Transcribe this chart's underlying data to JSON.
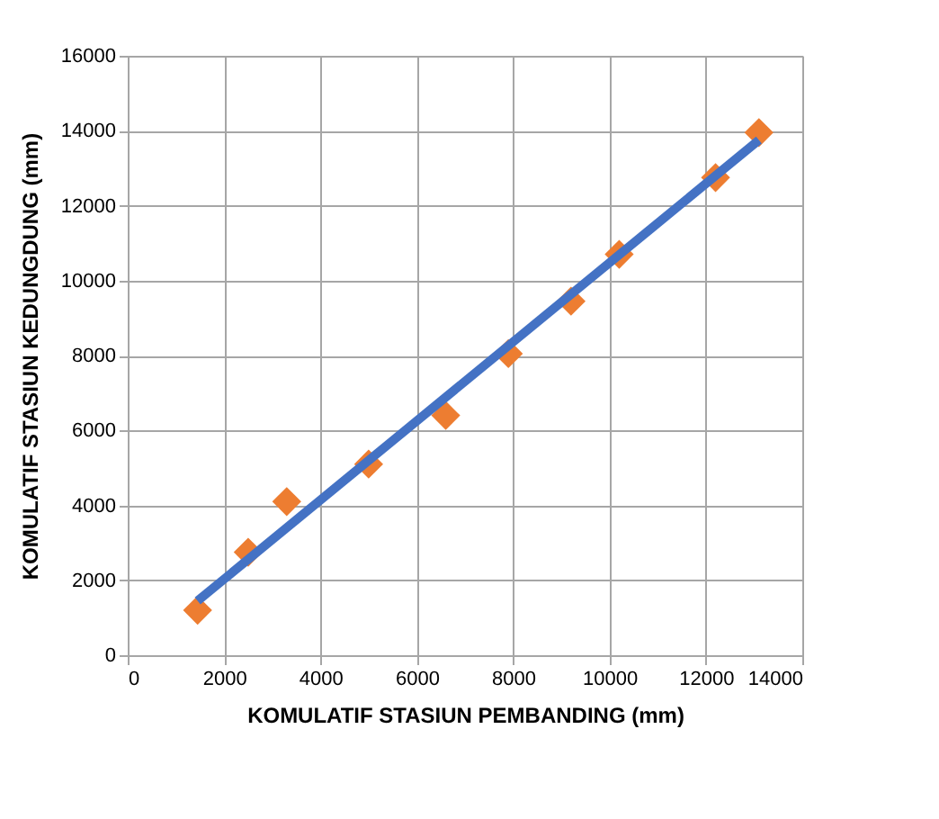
{
  "chart_data": {
    "type": "scatter",
    "xlabel": "KOMULATIF STASIUN PEMBANDING (mm)",
    "ylabel": "KOMULATIF STASIUN KEDUNGDUNG (mm)",
    "xlim": [
      0,
      14000
    ],
    "xticks": [
      0,
      2000,
      4000,
      6000,
      8000,
      10000,
      12000,
      14000
    ],
    "ylim": [
      0,
      16000
    ],
    "yticks": [
      0,
      2000,
      4000,
      6000,
      8000,
      10000,
      12000,
      14000,
      16000
    ],
    "grid": true,
    "series": [
      {
        "color": "#ed7d31",
        "marker": "diamond",
        "x": [
          1450,
          2500,
          3300,
          5000,
          6600,
          7900,
          9200,
          10200,
          12200,
          13100
        ],
        "values": [
          1200,
          2750,
          4100,
          5100,
          6400,
          8050,
          9450,
          10700,
          12750,
          13950
        ]
      },
      {
        "type": "line",
        "marker": "none",
        "color": "#4472c4",
        "x": [
          1450,
          13100
        ],
        "values": [
          1450,
          13750
        ]
      }
    ]
  }
}
